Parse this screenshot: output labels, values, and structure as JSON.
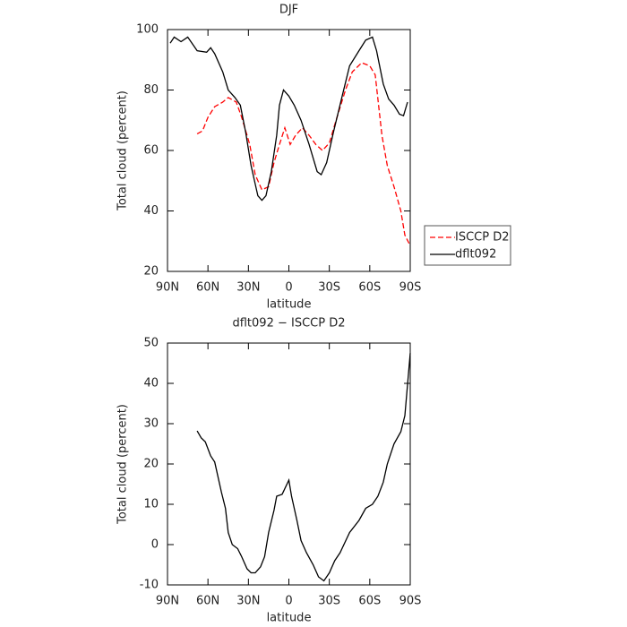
{
  "chart_data": [
    {
      "type": "line",
      "title": "DJF",
      "x_label": "latitude",
      "y_label": "Total cloud (percent)",
      "xlim": [
        90,
        -90
      ],
      "xticks": [
        {
          "value": 90,
          "label": "90N"
        },
        {
          "value": 60,
          "label": "60N"
        },
        {
          "value": 30,
          "label": "30N"
        },
        0,
        {
          "value": -30,
          "label": "30S"
        },
        {
          "value": -60,
          "label": "60S"
        },
        {
          "value": -90,
          "label": "90S"
        }
      ],
      "ylim": [
        20,
        100
      ],
      "yticks": [
        20,
        40,
        60,
        80,
        100
      ],
      "legend": "right",
      "series": [
        {
          "name": "ISCCP D2",
          "color": "#ff0000",
          "style": "dashed",
          "x": [
            68,
            64,
            60,
            55,
            49,
            45,
            39,
            35,
            29,
            25,
            20,
            15,
            11,
            7,
            3,
            -1,
            -5,
            -10,
            -15,
            -20,
            -25,
            -30,
            -35,
            -42,
            -47,
            -54,
            -60,
            -64,
            -69,
            -73,
            -78,
            -83,
            -86,
            -90
          ],
          "values": [
            65.5,
            66.5,
            71,
            74.5,
            76,
            77.5,
            76,
            71,
            62,
            52,
            47,
            48,
            56,
            62,
            67.5,
            62,
            65,
            67.5,
            65,
            62,
            60,
            62.5,
            70,
            80,
            86,
            89,
            88,
            85,
            65,
            55,
            48,
            40,
            32,
            28.5
          ]
        },
        {
          "name": "dflt092",
          "color": "#000000",
          "style": "solid",
          "x": [
            88,
            85,
            80,
            75,
            68,
            61,
            58,
            55,
            49,
            45,
            40,
            36,
            32,
            28,
            23,
            20,
            17,
            13,
            9,
            7,
            4,
            0,
            -4,
            -9,
            -15,
            -21,
            -24,
            -28,
            -33,
            -39,
            -45,
            -52,
            -57,
            -62,
            -65,
            -70,
            -74,
            -78,
            -82,
            -85,
            -88
          ],
          "values": [
            95.5,
            97.5,
            96,
            97.5,
            93,
            92.5,
            94,
            92,
            86,
            80,
            77.5,
            75,
            66,
            55,
            45,
            43.5,
            45,
            53,
            65,
            75,
            80,
            78,
            75,
            70,
            62,
            53,
            52,
            56,
            66,
            77,
            88,
            93,
            96.5,
            97.5,
            93,
            82,
            77,
            75,
            72,
            71.5,
            76
          ]
        }
      ]
    },
    {
      "type": "line",
      "title": "dflt092 − ISCCP D2",
      "x_label": "latitude",
      "y_label": "Total cloud (percent)",
      "xlim": [
        90,
        -90
      ],
      "xticks": [
        {
          "value": 90,
          "label": "90N"
        },
        {
          "value": 60,
          "label": "60N"
        },
        {
          "value": 30,
          "label": "30N"
        },
        0,
        {
          "value": -30,
          "label": "30S"
        },
        {
          "value": -60,
          "label": "60S"
        },
        {
          "value": -90,
          "label": "90S"
        }
      ],
      "ylim": [
        -10,
        50
      ],
      "yticks": [
        -10,
        0,
        10,
        20,
        30,
        40,
        50
      ],
      "series": [
        {
          "color": "#000000",
          "style": "solid",
          "x": [
            68,
            65,
            62,
            58,
            55,
            50,
            47,
            45,
            42,
            38,
            35,
            31,
            28,
            25,
            21,
            18,
            15,
            11,
            9,
            5,
            0,
            -2,
            -6,
            -9,
            -13,
            -18,
            -22,
            -26,
            -30,
            -34,
            -38,
            -45,
            -52,
            -57,
            -62,
            -66,
            -70,
            -73,
            -78,
            -83,
            -86,
            -90
          ],
          "values": [
            28.2,
            26.5,
            25.5,
            22,
            20.5,
            13,
            9,
            3,
            0,
            -1,
            -3,
            -6,
            -7,
            -7,
            -5.5,
            -3,
            3,
            8.5,
            12,
            12.5,
            16,
            12,
            6,
            1,
            -2,
            -5,
            -8,
            -9,
            -7,
            -4,
            -2,
            3,
            6,
            9,
            10,
            12,
            15.5,
            20,
            25,
            28,
            32,
            47.5
          ]
        }
      ]
    }
  ]
}
